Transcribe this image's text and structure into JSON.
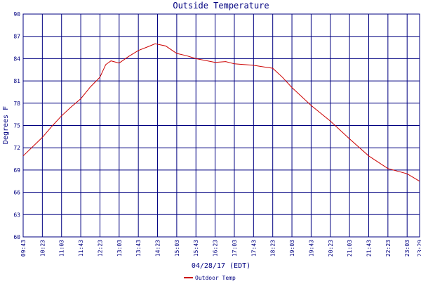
{
  "chart_data": {
    "type": "line",
    "title": "Outside Temperature",
    "x_label": "04/28/17 (EDT)",
    "y_label": "Degrees F",
    "x": [
      "09:43",
      "10:23",
      "10:43",
      "11:03",
      "11:23",
      "11:43",
      "12:03",
      "12:23",
      "12:35",
      "12:46",
      "13:03",
      "13:23",
      "13:43",
      "14:03",
      "14:18",
      "14:40",
      "15:03",
      "15:23",
      "15:43",
      "16:23",
      "16:45",
      "17:03",
      "17:43",
      "18:23",
      "18:43",
      "19:03",
      "19:43",
      "20:23",
      "21:03",
      "21:43",
      "22:23",
      "23:03",
      "23:29"
    ],
    "series": [
      {
        "name": "Outdoor Temp",
        "color": "#cc0000",
        "values": [
          70.9,
          73.4,
          74.9,
          76.3,
          77.5,
          78.6,
          80.2,
          81.5,
          83.2,
          83.7,
          83.4,
          84.3,
          85.1,
          85.6,
          86.0,
          85.7,
          84.7,
          84.4,
          84.0,
          83.5,
          83.6,
          83.3,
          83.1,
          82.7,
          81.5,
          80.1,
          77.7,
          75.6,
          73.2,
          70.9,
          69.2,
          68.5,
          67.5
        ]
      }
    ],
    "xlim": [
      "09:43",
      "23:29"
    ],
    "xticks": [
      "09:43",
      "10:23",
      "11:03",
      "11:43",
      "12:23",
      "13:03",
      "13:43",
      "14:23",
      "15:03",
      "15:43",
      "16:23",
      "17:03",
      "17:43",
      "18:23",
      "19:03",
      "19:43",
      "20:23",
      "21:03",
      "21:43",
      "22:23",
      "23:03",
      "23:29"
    ],
    "ylim": [
      60,
      90
    ],
    "yticks": [
      60,
      63,
      66,
      69,
      72,
      75,
      78,
      81,
      84,
      87,
      90
    ],
    "grid": true
  }
}
